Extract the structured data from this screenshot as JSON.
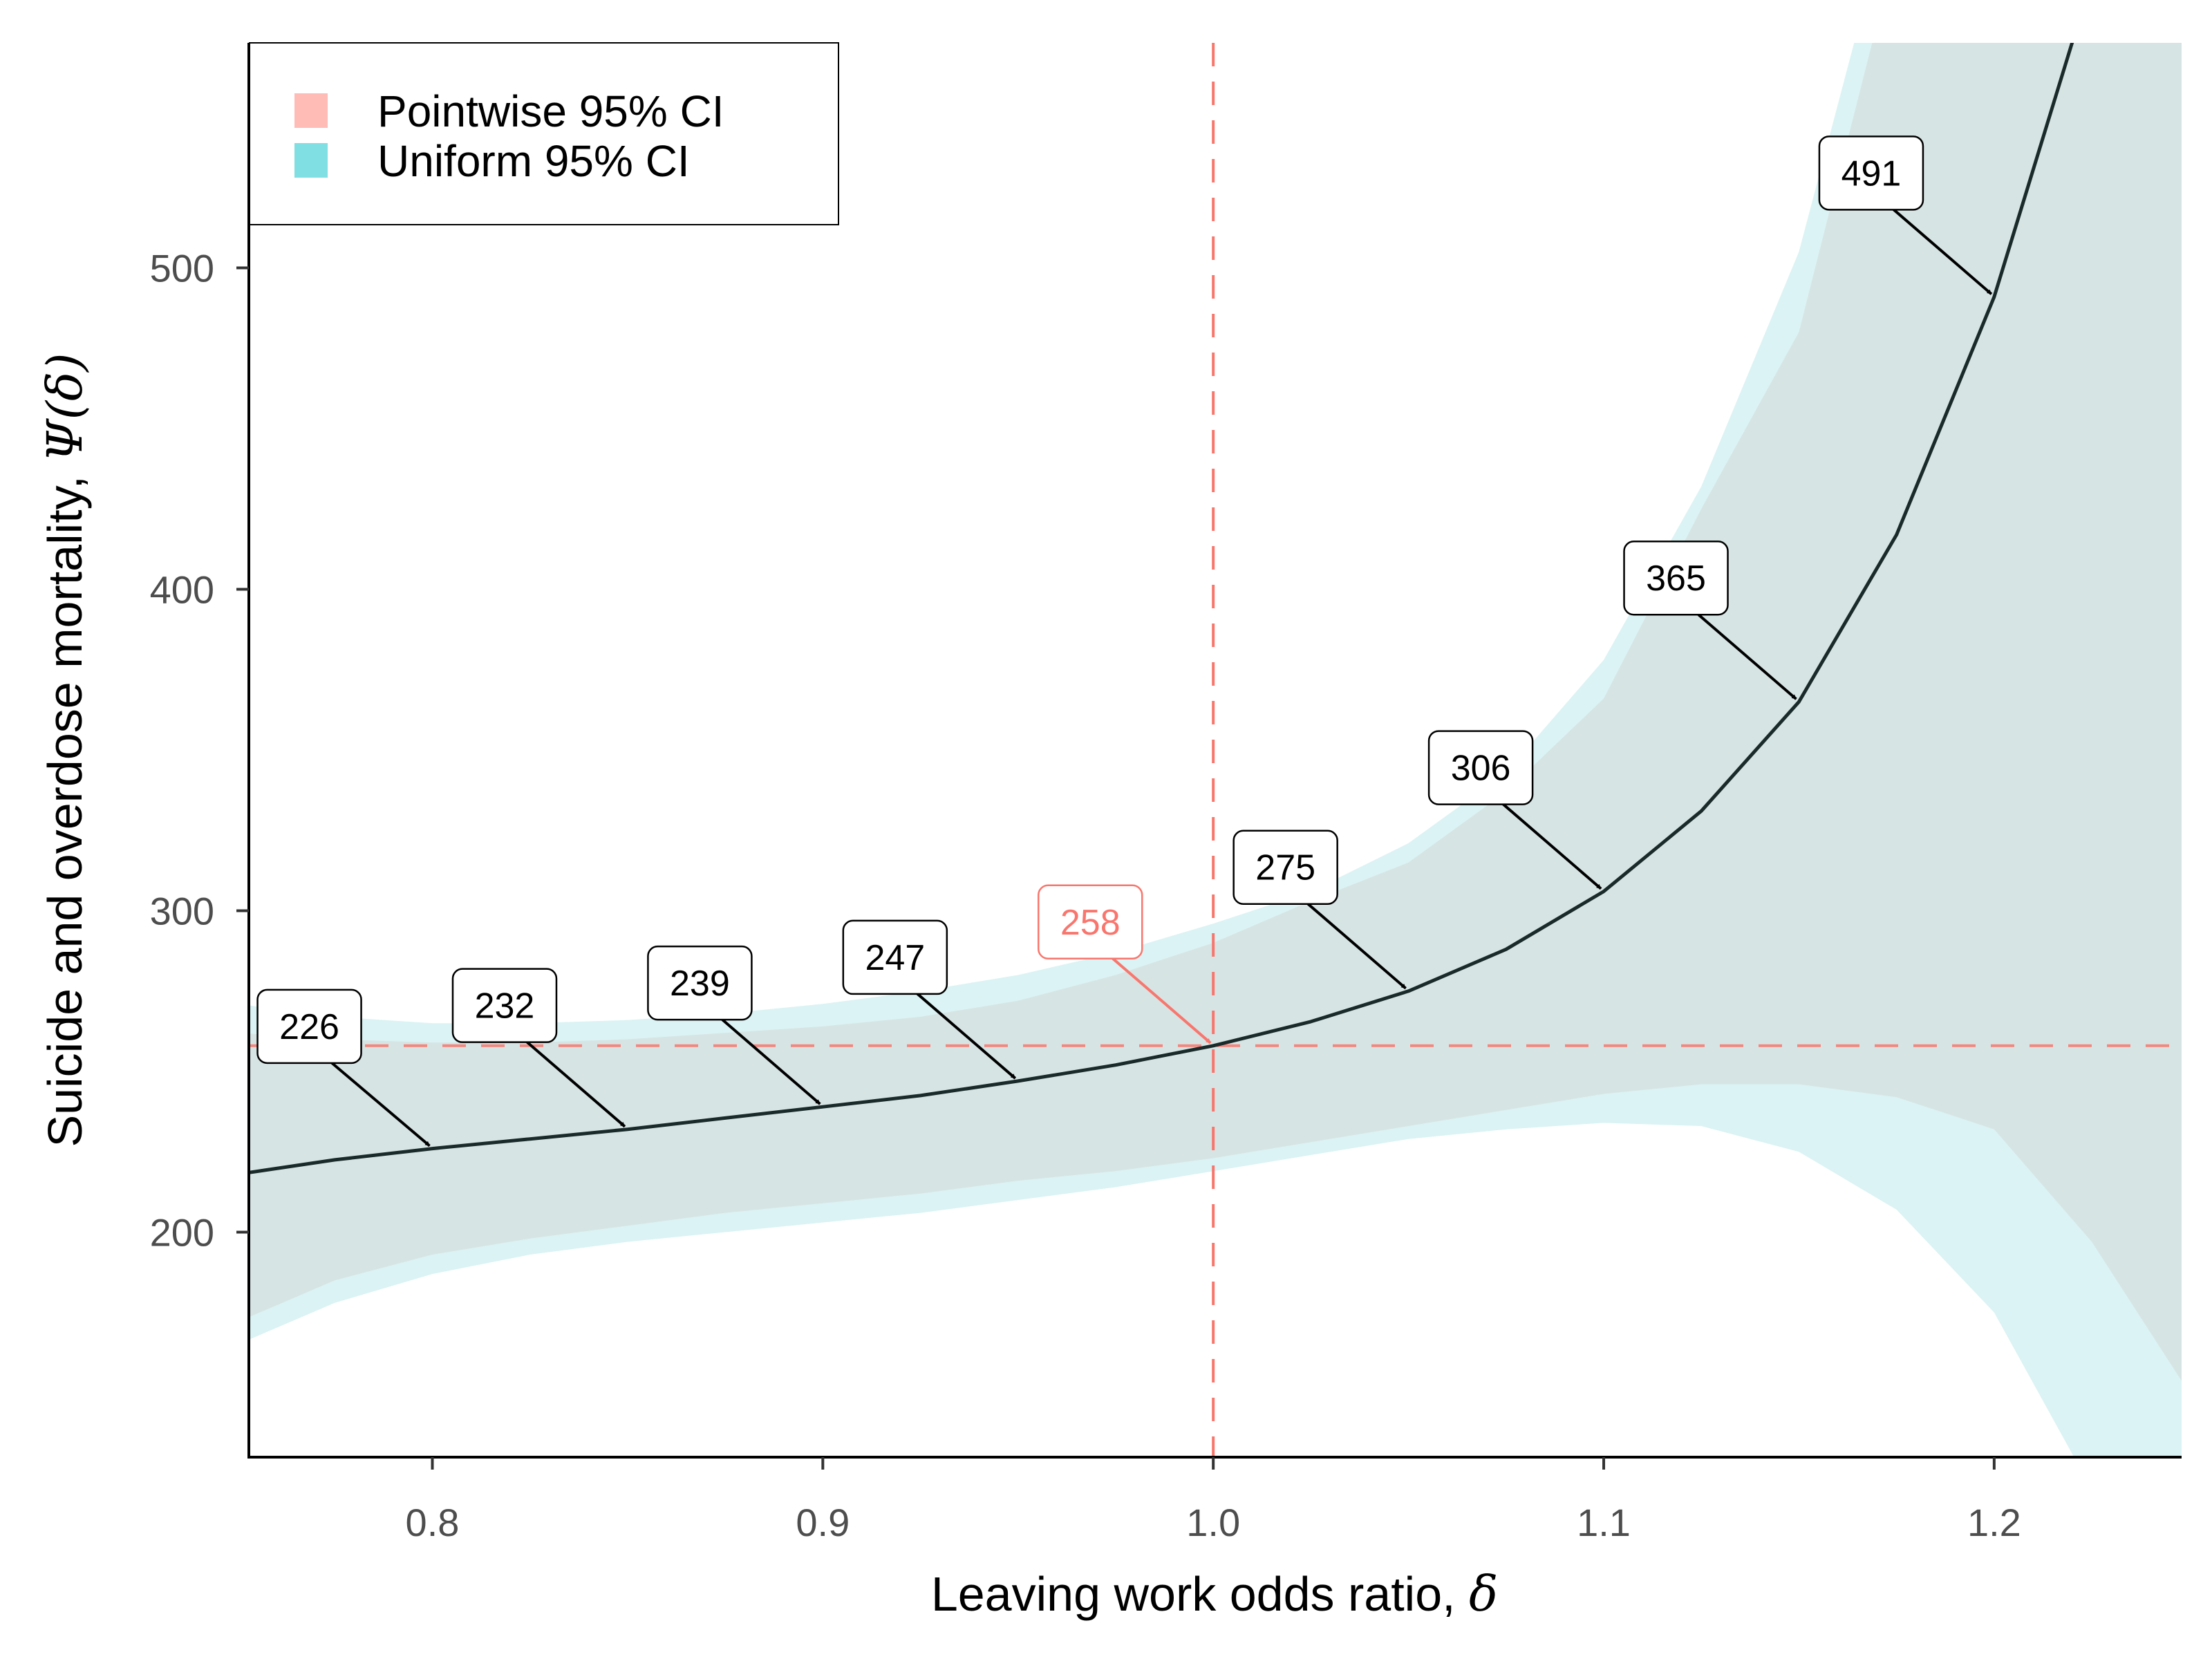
{
  "chart_data": {
    "type": "line",
    "xlabel": "Leaving work odds ratio, ",
    "xlabel_symbol": "δ",
    "ylabel": "Suicide and overdose mortality, ",
    "ylabel_symbol": "Ψ(δ)",
    "xlim": [
      0.753,
      1.248
    ],
    "ylim": [
      130,
      570
    ],
    "xticks": [
      0.8,
      0.9,
      1.0,
      1.1,
      1.2
    ],
    "xtick_labels": [
      "0.8",
      "0.9",
      "1.0",
      "1.1",
      "1.2"
    ],
    "yticks": [
      200,
      300,
      400,
      500
    ],
    "ytick_labels": [
      "200",
      "300",
      "400",
      "500"
    ],
    "grid": false,
    "legend_position": "top-left",
    "legend": [
      {
        "label": "Pointwise 95% CI",
        "color": "#F8766D"
      },
      {
        "label": "Uniform 95% CI",
        "color": "#00BFC4"
      }
    ],
    "colors": {
      "line": "#1a2a2a",
      "pointwise_band": "#d7e4e4",
      "uniform_band": "#dbf3f4",
      "reference": "#F8766D",
      "annotation": "#000000"
    },
    "series": [
      {
        "name": "estimate",
        "x": [
          0.75,
          0.775,
          0.8,
          0.825,
          0.85,
          0.875,
          0.9,
          0.925,
          0.95,
          0.975,
          1.0,
          1.025,
          1.05,
          1.075,
          1.1,
          1.125,
          1.15,
          1.175,
          1.2,
          1.225
        ],
        "y": [
          218,
          222.5,
          226,
          229,
          232,
          235.5,
          239,
          242.5,
          247,
          252,
          258,
          265.5,
          275,
          288,
          306,
          331,
          365,
          417,
          491,
          590
        ]
      }
    ],
    "pointwise_ci": {
      "x": [
        0.75,
        0.775,
        0.8,
        0.825,
        0.85,
        0.875,
        0.9,
        0.925,
        0.95,
        0.975,
        1.0,
        1.025,
        1.05,
        1.075,
        1.1,
        1.125,
        1.15,
        1.175,
        1.2,
        1.225,
        1.25
      ],
      "lower": [
        172,
        185,
        193,
        198,
        202,
        206,
        209,
        212,
        216,
        219,
        223,
        228,
        233,
        238,
        243,
        246,
        246,
        242,
        232,
        197,
        150
      ],
      "upper": [
        262,
        260,
        259,
        259,
        260,
        262,
        264,
        267,
        272,
        280,
        290,
        303,
        315,
        337,
        366,
        425,
        480,
        600,
        700,
        800,
        900
      ]
    },
    "uniform_ci": {
      "x": [
        0.75,
        0.775,
        0.8,
        0.825,
        0.85,
        0.875,
        0.9,
        0.925,
        0.95,
        0.975,
        1.0,
        1.025,
        1.05,
        1.075,
        1.1,
        1.125,
        1.15,
        1.175,
        1.2,
        1.225,
        1.25
      ],
      "lower": [
        165,
        178,
        187,
        193,
        197,
        200,
        203,
        206,
        210,
        214,
        219,
        224,
        229,
        232,
        234,
        233,
        225,
        207,
        175,
        120,
        60
      ],
      "upper": [
        271,
        267,
        265,
        265,
        266,
        268,
        271,
        275,
        280,
        287,
        296,
        306,
        321,
        343,
        378,
        432,
        505,
        620,
        720,
        820,
        920
      ]
    },
    "reference_lines": {
      "x": 1.0,
      "y": 258
    },
    "annotations": [
      {
        "label": "226",
        "x": 0.8,
        "y": 226,
        "lx": 0.7685,
        "ly": 264
      },
      {
        "label": "232",
        "x": 0.85,
        "y": 232,
        "lx": 0.8185,
        "ly": 270.5
      },
      {
        "label": "239",
        "x": 0.9,
        "y": 239,
        "lx": 0.8685,
        "ly": 277.5
      },
      {
        "label": "247",
        "x": 0.95,
        "y": 247,
        "lx": 0.9185,
        "ly": 285.5
      },
      {
        "label": "258",
        "x": 1.0,
        "y": 258,
        "lx": 0.9685,
        "ly": 296.5,
        "highlight": true
      },
      {
        "label": "275",
        "x": 1.05,
        "y": 275,
        "lx": 1.0185,
        "ly": 313.5
      },
      {
        "label": "306",
        "x": 1.1,
        "y": 306,
        "lx": 1.0685,
        "ly": 344.5
      },
      {
        "label": "365",
        "x": 1.15,
        "y": 365,
        "lx": 1.1185,
        "ly": 403.5
      },
      {
        "label": "491",
        "x": 1.2,
        "y": 491,
        "lx": 1.1685,
        "ly": 529.5
      }
    ]
  }
}
